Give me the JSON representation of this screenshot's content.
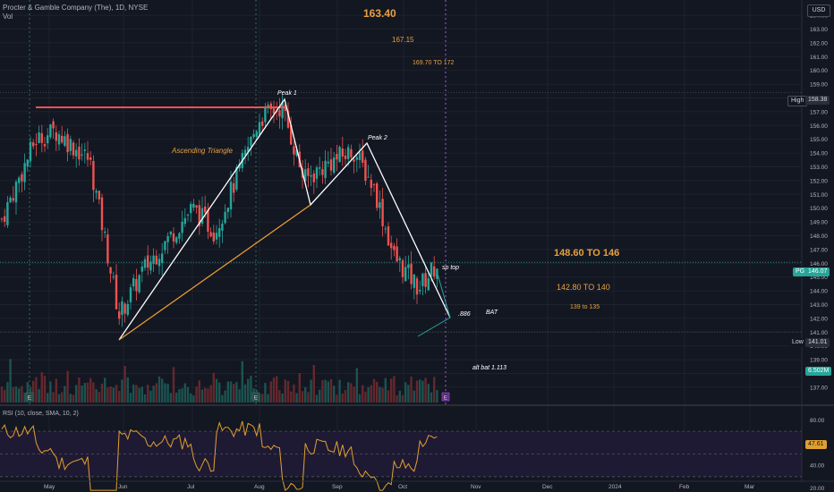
{
  "header": {
    "symbol_line": "Procter & Gamble Company (The), 1D, NYSE",
    "vol_label": "Vol"
  },
  "currency_button": "USD",
  "annotations": {
    "t163": "163.40",
    "t167": "167.15",
    "t169": "169.70 TO 172",
    "peak1": "Peak 1",
    "peak2": "Peak 2",
    "asc_triangle": "Ascending Triangle",
    "sp_top": "sp top",
    "t148": "148.60 TO 146",
    "t142": "142.80 TO 140",
    "t139": "139 to 135",
    "fib886": ".886",
    "bat": "BAT",
    "alt_bat": "alt bat  1.113"
  },
  "price_axis": {
    "ticks": [
      "164.00",
      "163.00",
      "162.00",
      "161.00",
      "160.00",
      "159.00",
      "158.00",
      "157.00",
      "156.00",
      "155.00",
      "154.00",
      "153.00",
      "152.00",
      "151.00",
      "150.00",
      "149.00",
      "148.00",
      "147.00",
      "146.00",
      "145.00",
      "144.00",
      "143.00",
      "142.00",
      "141.00",
      "140.00",
      "139.00",
      "138.00",
      "137.00"
    ],
    "high_label": "High",
    "high_value": "158.38",
    "last_symbol": "PG",
    "last_value": "146.07",
    "low_label": "Low",
    "low_value": "141.01",
    "vol_value": "6.502M"
  },
  "rsi": {
    "label": "RSI (10, close, SMA, 10, 2)",
    "ticks": [
      "80.00",
      "60.00",
      "40.00",
      "20.00"
    ],
    "value": "47.61"
  },
  "time_axis": [
    "May",
    "Jun",
    "Jul",
    "Aug",
    "Sep",
    "Oct",
    "Nov",
    "Dec",
    "2024",
    "Feb",
    "Mar"
  ],
  "colors": {
    "background": "#131722",
    "up": "#26a69a",
    "down": "#ef5350",
    "orange": "#f0a030",
    "rsi_line": "#e0a030",
    "grid": "#1e222d"
  },
  "chart_data": {
    "type": "candlestick",
    "symbol": "PG",
    "interval": "1D",
    "exchange": "NYSE",
    "y_range": [
      136.5,
      164.6
    ],
    "series_close_path": [
      {
        "t": "Apr-early",
        "c": 149.2
      },
      {
        "t": "Apr-mid",
        "c": 155.0
      },
      {
        "t": "Apr-end",
        "c": 155.6
      },
      {
        "t": "May-mid",
        "c": 153.5
      },
      {
        "t": "May-end",
        "c": 147.5
      },
      {
        "t": "Jun-01",
        "c": 142.2
      },
      {
        "t": "Jun-mid",
        "c": 145.5
      },
      {
        "t": "Jul-01",
        "c": 150.0
      },
      {
        "t": "Jul-mid",
        "c": 148.3
      },
      {
        "t": "Jul-end",
        "c": 152.8
      },
      {
        "t": "Aug-01",
        "c": 156.5
      },
      {
        "t": "Aug-10",
        "c": 157.4
      },
      {
        "t": "Aug-20",
        "c": 152.0
      },
      {
        "t": "Aug-end",
        "c": 153.2
      },
      {
        "t": "Sep-10",
        "c": 154.2
      },
      {
        "t": "Sep-20",
        "c": 151.5
      },
      {
        "t": "Oct-01",
        "c": 146.5
      },
      {
        "t": "Oct-10",
        "c": 144.2
      },
      {
        "t": "Oct-18",
        "c": 146.07
      }
    ],
    "high": 158.38,
    "low": 141.01,
    "last": 146.07,
    "volume_last": "6.502M",
    "rsi": {
      "period": 10,
      "last": 47.61,
      "levels": [
        70,
        50,
        30
      ]
    }
  }
}
